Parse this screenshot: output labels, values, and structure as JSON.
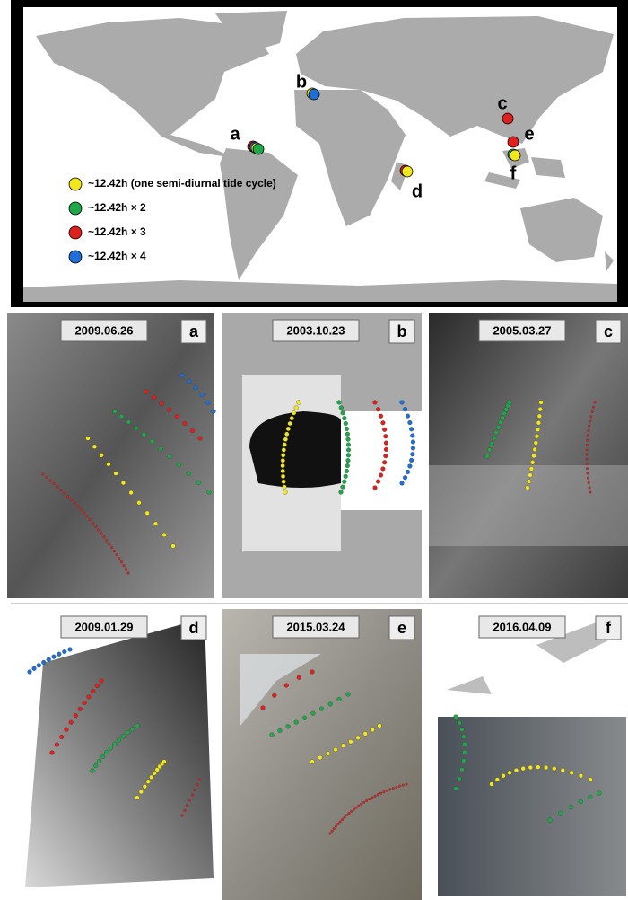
{
  "map": {
    "site_labels": [
      "a",
      "b",
      "c",
      "d",
      "e",
      "f"
    ],
    "legend": [
      {
        "label": "~12.42h (one semi-diurnal tide cycle)",
        "color": "#f2e61c"
      },
      {
        "label": "~12.42h × 2",
        "color": "#1fa84a"
      },
      {
        "label": "~12.42h × 3",
        "color": "#e0201c"
      },
      {
        "label": "~12.42h × 4",
        "color": "#1f6fd6"
      }
    ]
  },
  "panels": [
    {
      "date": "2009.06.26",
      "letter": "a"
    },
    {
      "date": "2003.10.23",
      "letter": "b"
    },
    {
      "date": "2005.03.27",
      "letter": "c"
    },
    {
      "date": "2009.01.29",
      "letter": "d"
    },
    {
      "date": "2015.03.24",
      "letter": "e"
    },
    {
      "date": "2016.04.09",
      "letter": "f"
    }
  ]
}
